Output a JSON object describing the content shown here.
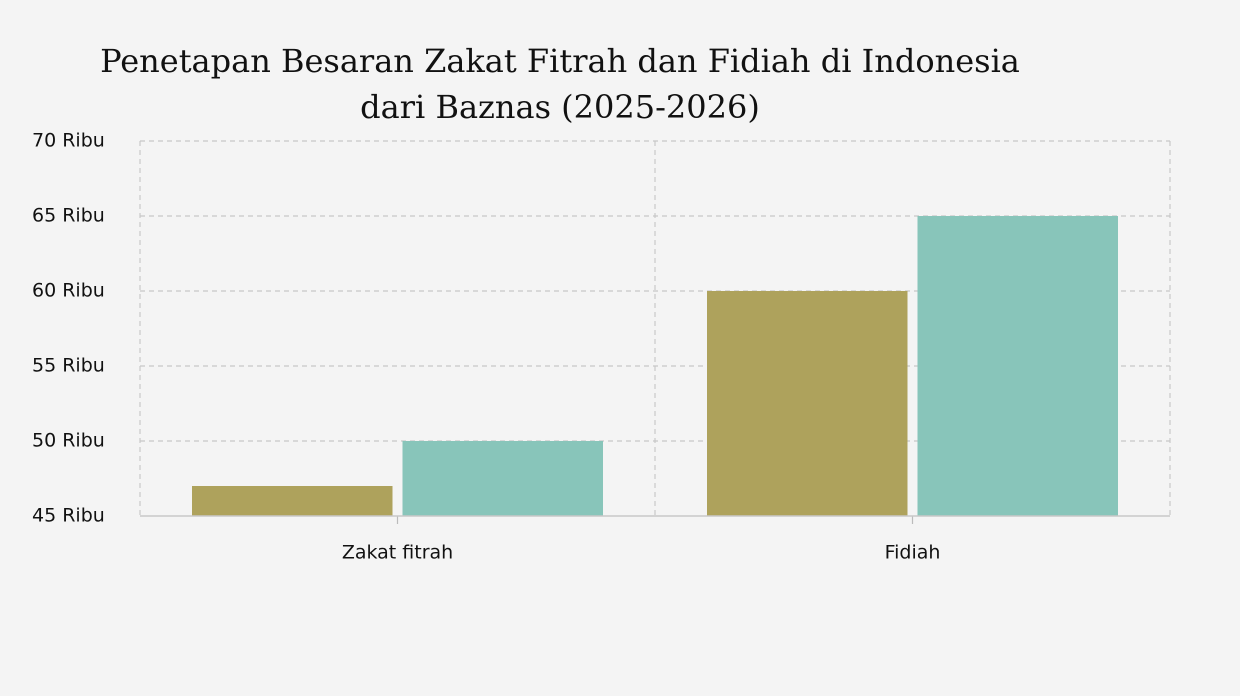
{
  "chart_data": {
    "type": "bar",
    "title": "Penetapan Besaran Zakat Fitrah dan Fidiah di Indonesia dari Baznas (2025-2026)",
    "categories": [
      "Zakat fitrah",
      "Fidiah"
    ],
    "series": [
      {
        "color": "#aea25c",
        "values": [
          47000,
          60000
        ]
      },
      {
        "color": "#88c5ba",
        "values": [
          50000,
          65000
        ]
      }
    ],
    "ylim": [
      45000,
      70000
    ],
    "yticks": [
      {
        "value": 45000,
        "label": "45 Ribu"
      },
      {
        "value": 50000,
        "label": "50 Ribu"
      },
      {
        "value": 55000,
        "label": "55 Ribu"
      },
      {
        "value": 60000,
        "label": "60 Ribu"
      },
      {
        "value": 65000,
        "label": "65 Ribu"
      },
      {
        "value": 70000,
        "label": "70 Ribu"
      }
    ],
    "grid": true
  }
}
